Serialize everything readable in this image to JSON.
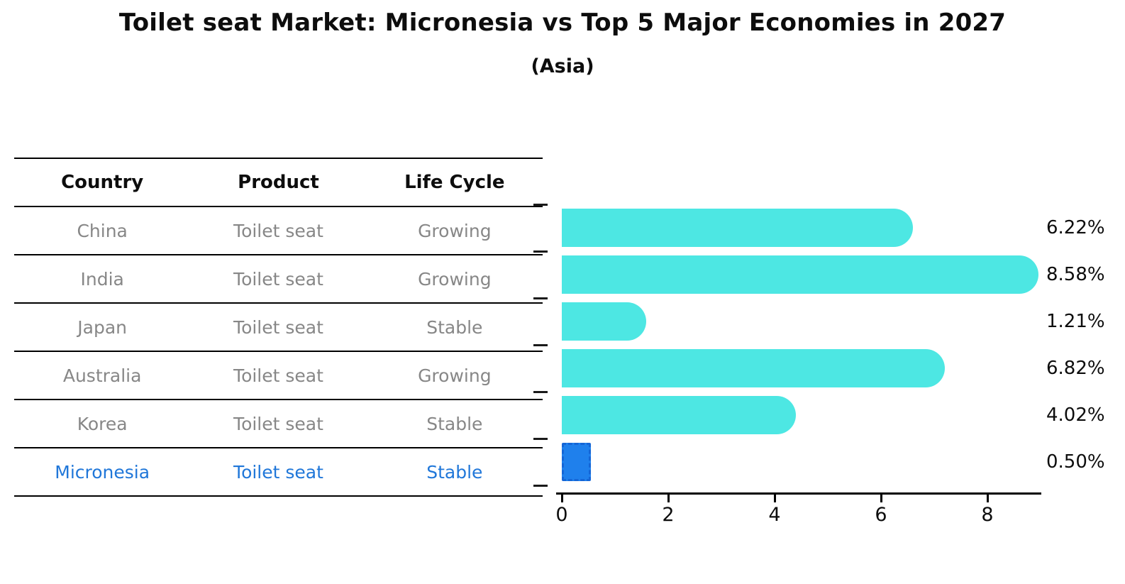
{
  "title": "Toilet seat Market: Micronesia vs Top 5 Major Economies in 2027",
  "subtitle": "(Asia)",
  "table": {
    "headers": [
      "Country",
      "Product",
      "Life Cycle"
    ],
    "rows": [
      {
        "country": "China",
        "product": "Toilet seat",
        "life_cycle": "Growing"
      },
      {
        "country": "India",
        "product": "Toilet seat",
        "life_cycle": "Growing"
      },
      {
        "country": "Japan",
        "product": "Toilet seat",
        "life_cycle": "Stable"
      },
      {
        "country": "Australia",
        "product": "Toilet seat",
        "life_cycle": "Growing"
      },
      {
        "country": "Korea",
        "product": "Toilet seat",
        "life_cycle": "Stable"
      },
      {
        "country": "Micronesia",
        "product": "Toilet seat",
        "life_cycle": "Stable"
      }
    ],
    "text_color": "#878787",
    "highlight_row_color": "#2077D9"
  },
  "chart_data": {
    "type": "bar",
    "orientation": "horizontal",
    "title": "Toilet seat Market: Micronesia vs Top 5 Major Economies in 2027",
    "subtitle": "(Asia)",
    "categories": [
      "China",
      "India",
      "Japan",
      "Australia",
      "Korea",
      "Micronesia"
    ],
    "values": [
      6.22,
      8.58,
      1.21,
      6.82,
      4.02,
      0.5
    ],
    "value_labels": [
      "6.22%",
      "8.58%",
      "1.21%",
      "6.82%",
      "4.02%",
      "0.50%"
    ],
    "highlight_category": "Micronesia",
    "xlabel": "",
    "ylabel": "",
    "xlim": [
      0,
      9
    ],
    "x_ticks": [
      0,
      2,
      4,
      6,
      8
    ],
    "x_tick_labels": [
      "0",
      "2",
      "4",
      "6",
      "8"
    ],
    "grid": false,
    "legend": false,
    "colors": {
      "bar": "#4DE7E3",
      "highlight": "#1F80EC",
      "highlight_border": "#1566D6",
      "axis": "#000000"
    }
  }
}
